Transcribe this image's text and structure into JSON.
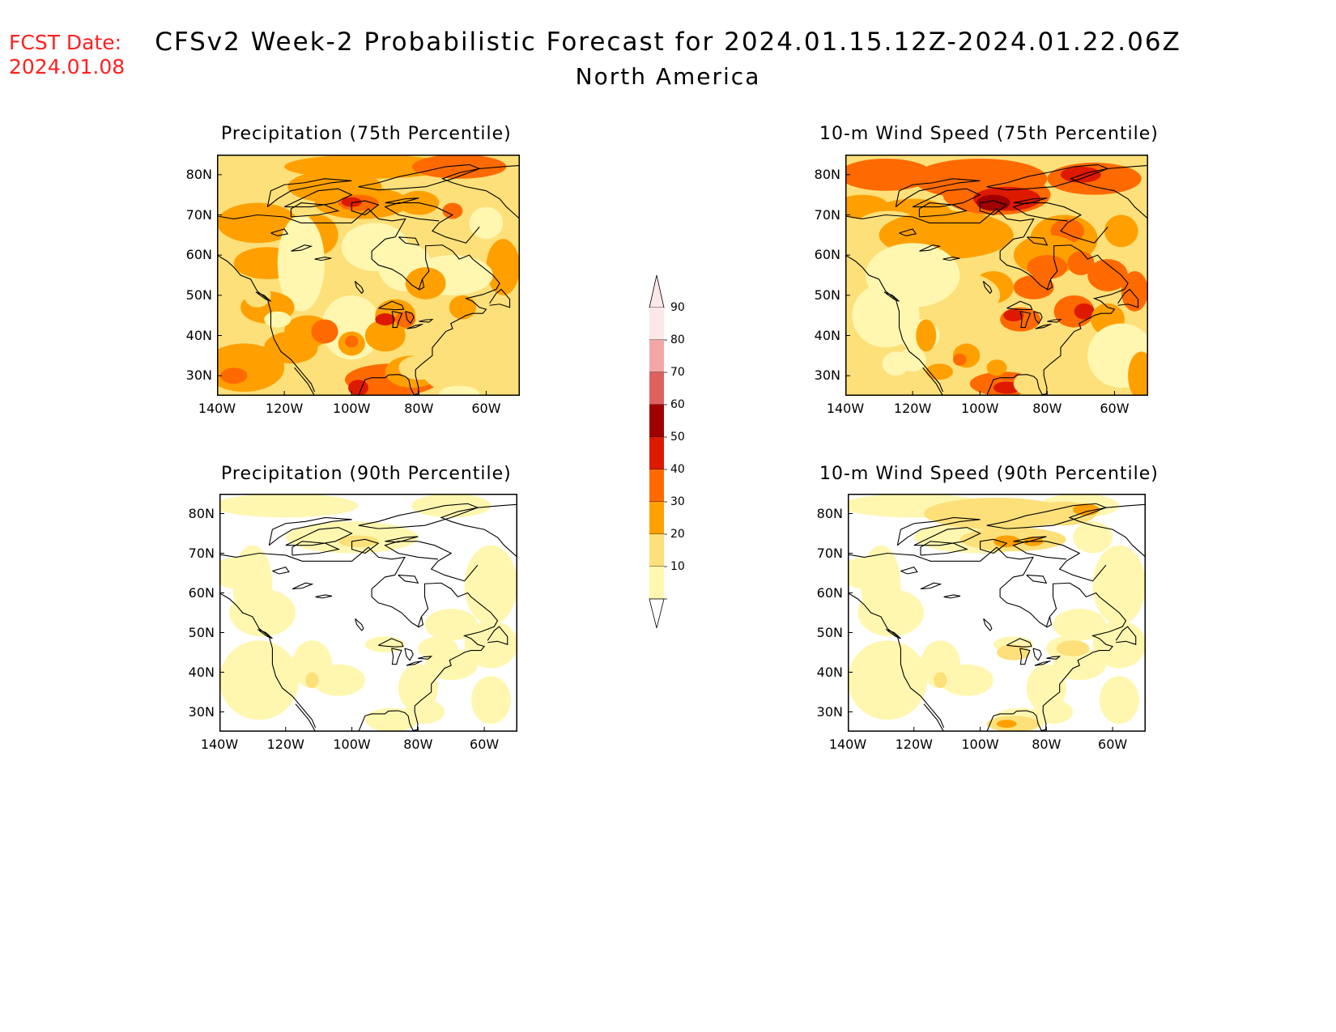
{
  "header": {
    "fcst_label": "FCST Date:",
    "fcst_date": "2024.01.08",
    "title": "CFSv2 Week-2 Probabilistic Forecast for 2024.01.15.12Z-2024.01.22.06Z",
    "subtitle": "North America"
  },
  "panels": [
    {
      "id": "p75",
      "title": "Precipitation (75th Percentile)",
      "intensity": "high"
    },
    {
      "id": "w75",
      "title": "10-m Wind Speed (75th Percentile)",
      "intensity": "veryhigh"
    },
    {
      "id": "p90",
      "title": "Precipitation (90th Percentile)",
      "intensity": "low"
    },
    {
      "id": "w90",
      "title": "10-m Wind Speed (90th Percentile)",
      "intensity": "low"
    }
  ],
  "axes": {
    "lat_ticks": [
      "80N",
      "70N",
      "60N",
      "50N",
      "40N",
      "30N"
    ],
    "lon_ticks": [
      "140W",
      "120W",
      "100W",
      "80W",
      "60W"
    ],
    "lat_range": [
      25,
      85
    ],
    "lon_range": [
      -140,
      -50
    ]
  },
  "colorbar": {
    "levels": [
      "90",
      "80",
      "70",
      "60",
      "50",
      "40",
      "30",
      "20",
      "10"
    ],
    "colors": [
      "#fde8e8",
      "#f4a6a6",
      "#e06060",
      "#a00000",
      "#dd1a00",
      "#ff6a00",
      "#ffa000",
      "#fde07a",
      "#fff7b0"
    ]
  }
}
